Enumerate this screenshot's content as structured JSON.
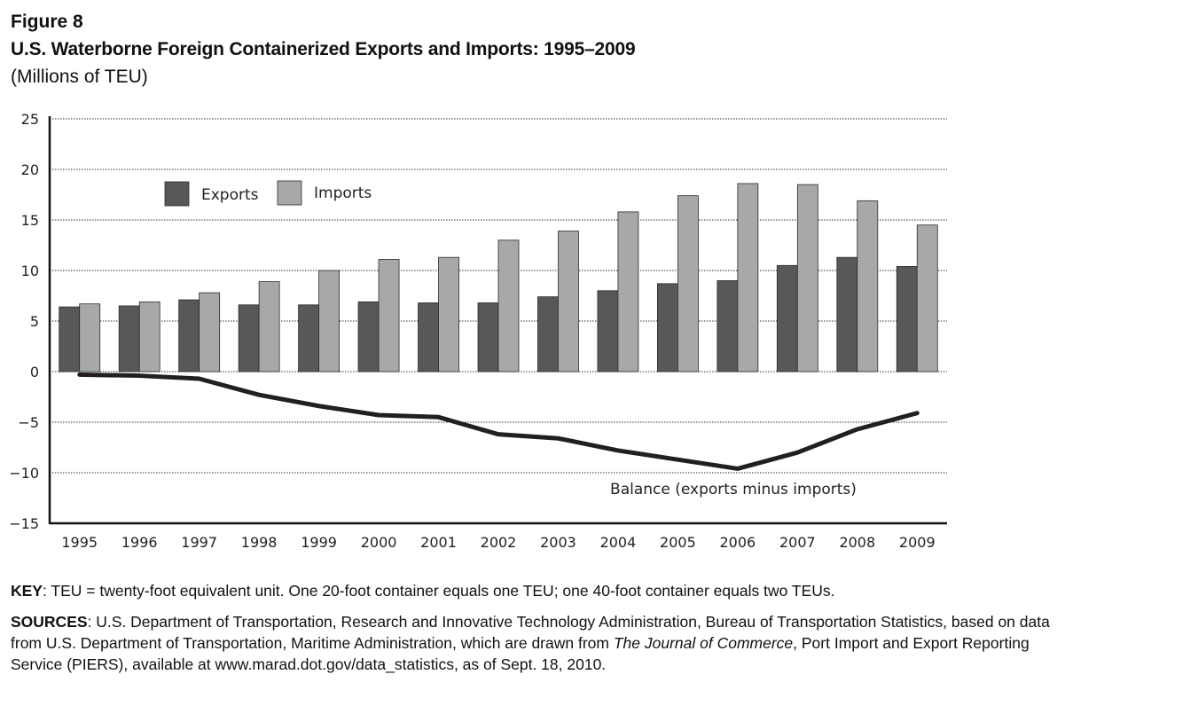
{
  "header": {
    "figure_label": "Figure 8",
    "title": "U.S. Waterborne Foreign Containerized Exports and Imports: 1995–2009",
    "subtitle": "(Millions of TEU)"
  },
  "chart_data": {
    "type": "bar",
    "categories": [
      "1995",
      "1996",
      "1997",
      "1998",
      "1999",
      "2000",
      "2001",
      "2002",
      "2003",
      "2004",
      "2005",
      "2006",
      "2007",
      "2008",
      "2009"
    ],
    "series": [
      {
        "name": "Exports",
        "type": "bar",
        "color": "#58585a",
        "values": [
          6.4,
          6.5,
          7.1,
          6.6,
          6.6,
          6.9,
          6.8,
          6.8,
          7.4,
          8.0,
          8.7,
          9.0,
          10.5,
          11.3,
          10.4
        ]
      },
      {
        "name": "Imports",
        "type": "bar",
        "color": "#a7a8aa",
        "values": [
          6.7,
          6.9,
          7.8,
          8.9,
          10.0,
          11.1,
          11.3,
          13.0,
          13.9,
          15.8,
          17.4,
          18.6,
          18.5,
          16.9,
          14.5
        ]
      },
      {
        "name": "Balance (exports minus imports)",
        "type": "line",
        "color": "#231f20",
        "values": [
          -0.3,
          -0.4,
          -0.7,
          -2.3,
          -3.4,
          -4.3,
          -4.5,
          -6.2,
          -6.6,
          -7.8,
          -8.7,
          -9.6,
          -8.0,
          -5.7,
          -4.1
        ]
      }
    ],
    "ylim": [
      -15,
      25
    ],
    "yticks": [
      25,
      20,
      15,
      10,
      5,
      0,
      -5,
      -10,
      -15
    ],
    "ytick_labels": [
      "25",
      "20",
      "15",
      "10",
      "5",
      "0",
      "−5",
      "−10",
      "−15"
    ],
    "grid": "horizontal dotted",
    "legend": {
      "placement": "top-left",
      "entries": [
        "Exports",
        "Imports"
      ]
    },
    "line_label": "Balance (exports minus imports)"
  },
  "notes": {
    "key_label": "KEY",
    "key_text": ": TEU = twenty-foot equivalent unit. One 20-foot container equals one TEU; one 40-foot container equals two TEUs.",
    "sources_label": "SOURCES",
    "sources_text_1": ": U.S. Department of Transportation, Research and Innovative Technology Administration, Bureau of Transportation Statistics, based on data from U.S. Department of Transportation, Maritime Administration, which are drawn from ",
    "sources_italic": "The Journal of Commerce",
    "sources_text_2": ", Port Import and Export Reporting Service (PIERS), available at www.marad.dot.gov/data_statistics, as of Sept. 18, 2010."
  }
}
